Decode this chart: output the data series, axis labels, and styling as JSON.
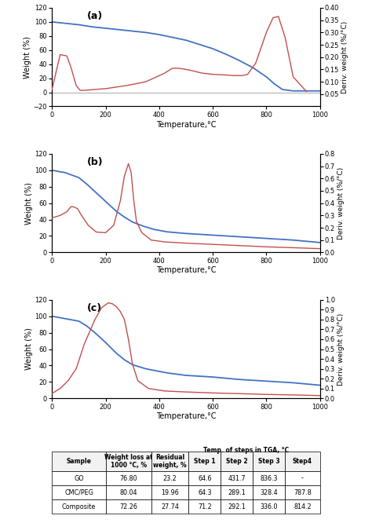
{
  "panel_a": {
    "label": "(a)",
    "tga_x": [
      0,
      50,
      100,
      150,
      200,
      250,
      300,
      350,
      400,
      450,
      500,
      550,
      600,
      650,
      700,
      750,
      800,
      830,
      860,
      900,
      950,
      1000
    ],
    "tga_y": [
      100,
      98,
      96,
      93,
      91,
      89,
      87,
      85,
      82,
      78,
      74,
      68,
      62,
      54,
      45,
      35,
      22,
      12,
      4,
      2,
      2,
      2
    ],
    "dta_x": [
      0,
      30,
      55,
      70,
      90,
      105,
      120,
      150,
      200,
      280,
      350,
      420,
      450,
      470,
      490,
      510,
      530,
      560,
      600,
      640,
      680,
      710,
      730,
      760,
      800,
      825,
      845,
      870,
      900,
      950
    ],
    "dta_y": [
      0.07,
      0.21,
      0.205,
      0.16,
      0.085,
      0.065,
      0.065,
      0.068,
      0.072,
      0.085,
      0.1,
      0.135,
      0.155,
      0.155,
      0.152,
      0.148,
      0.143,
      0.135,
      0.13,
      0.128,
      0.125,
      0.125,
      0.13,
      0.175,
      0.3,
      0.36,
      0.365,
      0.28,
      0.12,
      0.06
    ],
    "tga_ylim": [
      -20,
      120
    ],
    "dta_ylim": [
      0,
      0.4
    ],
    "tga_yticks": [
      -20,
      0,
      20,
      40,
      60,
      80,
      100,
      120
    ],
    "dta_yticks": [
      0.05,
      0.1,
      0.15,
      0.2,
      0.25,
      0.3,
      0.35,
      0.4
    ]
  },
  "panel_b": {
    "label": "(b)",
    "tga_x": [
      0,
      50,
      100,
      130,
      160,
      200,
      240,
      270,
      300,
      340,
      380,
      430,
      500,
      600,
      700,
      800,
      900,
      1000
    ],
    "tga_y": [
      100,
      97,
      91,
      83,
      74,
      62,
      50,
      43,
      37,
      32,
      28,
      25,
      23,
      21,
      19,
      17,
      15,
      12
    ],
    "dta_x": [
      0,
      30,
      55,
      70,
      80,
      95,
      110,
      135,
      165,
      200,
      230,
      255,
      270,
      285,
      295,
      305,
      315,
      335,
      370,
      420,
      500,
      600,
      700,
      800,
      900,
      1000
    ],
    "dta_y": [
      0.28,
      0.3,
      0.33,
      0.37,
      0.37,
      0.355,
      0.3,
      0.22,
      0.165,
      0.16,
      0.22,
      0.42,
      0.62,
      0.72,
      0.65,
      0.42,
      0.25,
      0.16,
      0.1,
      0.085,
      0.075,
      0.065,
      0.055,
      0.045,
      0.038,
      0.03
    ],
    "tga_ylim": [
      0,
      120
    ],
    "dta_ylim": [
      0,
      0.8
    ],
    "tga_yticks": [
      0,
      20,
      40,
      60,
      80,
      100,
      120
    ],
    "dta_yticks": [
      0.0,
      0.1,
      0.2,
      0.3,
      0.4,
      0.5,
      0.6,
      0.7,
      0.8
    ]
  },
  "panel_c": {
    "label": "(c)",
    "tga_x": [
      0,
      50,
      100,
      130,
      160,
      200,
      240,
      270,
      300,
      350,
      430,
      500,
      600,
      700,
      800,
      900,
      1000
    ],
    "tga_y": [
      100,
      97,
      94,
      88,
      80,
      68,
      55,
      47,
      41,
      36,
      31,
      28,
      26,
      23,
      21,
      19,
      16
    ],
    "dta_x": [
      0,
      30,
      60,
      90,
      120,
      160,
      185,
      210,
      225,
      240,
      255,
      270,
      285,
      300,
      320,
      360,
      420,
      500,
      600,
      700,
      800,
      900,
      1000
    ],
    "dta_y": [
      0.05,
      0.1,
      0.18,
      0.3,
      0.55,
      0.8,
      0.92,
      0.97,
      0.96,
      0.93,
      0.88,
      0.8,
      0.6,
      0.35,
      0.18,
      0.1,
      0.075,
      0.065,
      0.055,
      0.048,
      0.04,
      0.035,
      0.028
    ],
    "tga_ylim": [
      0,
      120
    ],
    "dta_ylim": [
      0,
      1.0
    ],
    "tga_yticks": [
      0,
      20,
      40,
      60,
      80,
      100,
      120
    ],
    "dta_yticks": [
      0.0,
      0.1,
      0.2,
      0.3,
      0.4,
      0.5,
      0.6,
      0.7,
      0.8,
      0.9,
      1.0
    ]
  },
  "xlim": [
    0,
    1000
  ],
  "xticks": [
    0,
    200,
    400,
    600,
    800,
    1000
  ],
  "xlabel": "Temperature,°C",
  "ylabel_left": "Weight (%)",
  "ylabel_right": "Deriv. weight (%/°C)",
  "tga_color": "#4472C4",
  "dta_color": "#C0504D",
  "table_col_labels": [
    "Sample",
    "Weight loss at\n1000 °C, %",
    "Residual\nweight, %",
    "Step 1",
    "Step 2",
    "Step 3",
    "Step4"
  ],
  "table_span_label": "Temp. of steps in TGA, °C",
  "table_rows": [
    [
      "GO",
      "76.80",
      "23.2",
      "64.6",
      "431.7",
      "836.3",
      "-"
    ],
    [
      "CMC/PEG",
      "80.04",
      "19.96",
      "64.3",
      "289.1",
      "328.4",
      "787.8"
    ],
    [
      "Composite",
      "72.26",
      "27.74",
      "71.2",
      "292.1",
      "336.0",
      "814.2"
    ]
  ]
}
